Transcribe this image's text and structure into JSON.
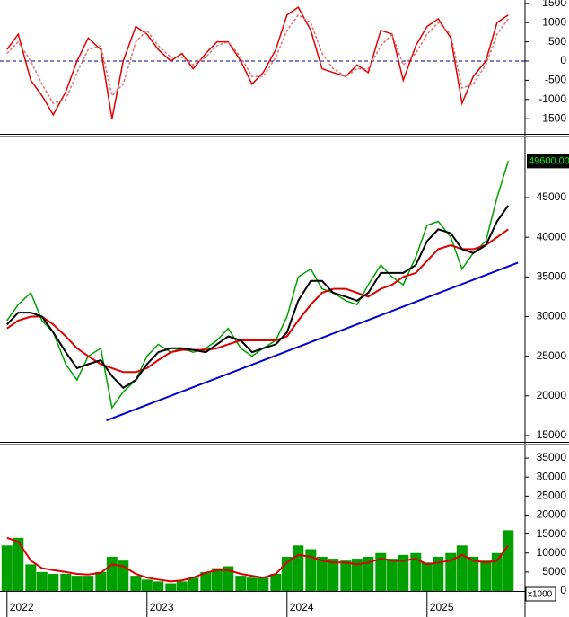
{
  "chart_data": [
    {
      "type": "line",
      "xlim": [
        2021.95,
        2025.7
      ],
      "ylim": [
        -1870,
        1590
      ],
      "yticks": [
        1500,
        1000,
        500,
        0,
        -500,
        -1000,
        -1500
      ],
      "hline": 0,
      "x": [
        2022.0,
        2022.08,
        2022.17,
        2022.25,
        2022.33,
        2022.42,
        2022.5,
        2022.58,
        2022.67,
        2022.75,
        2022.83,
        2022.92,
        2023.0,
        2023.08,
        2023.17,
        2023.25,
        2023.33,
        2023.42,
        2023.5,
        2023.58,
        2023.67,
        2023.75,
        2023.83,
        2023.92,
        2024.0,
        2024.08,
        2024.17,
        2024.25,
        2024.33,
        2024.42,
        2024.5,
        2024.58,
        2024.67,
        2024.75,
        2024.83,
        2024.92,
        2025.0,
        2025.08,
        2025.17,
        2025.25,
        2025.33,
        2025.42,
        2025.5,
        2025.58
      ],
      "series": [
        {
          "color": "#e00000",
          "style": "solid",
          "values": [
            300,
            700,
            -500,
            -900,
            -1400,
            -800,
            0,
            600,
            300,
            -1500,
            0,
            900,
            700,
            300,
            0,
            200,
            -200,
            200,
            500,
            500,
            0,
            -600,
            -300,
            300,
            1200,
            1400,
            800,
            -200,
            -300,
            -400,
            -100,
            -300,
            800,
            700,
            -500,
            400,
            900,
            1100,
            600,
            -1100,
            -400,
            0,
            1000,
            1200
          ]
        },
        {
          "color": "#e07070",
          "style": "dashed",
          "values": [
            200,
            500,
            0,
            -600,
            -1100,
            -1000,
            -300,
            300,
            400,
            -900,
            -600,
            500,
            800,
            400,
            100,
            100,
            -100,
            100,
            400,
            500,
            100,
            -400,
            -400,
            100,
            800,
            1200,
            1000,
            200,
            -200,
            -400,
            -200,
            -200,
            400,
            700,
            -100,
            200,
            700,
            1000,
            700,
            -700,
            -600,
            -100,
            700,
            1100
          ]
        }
      ]
    },
    {
      "type": "line",
      "xlim": [
        2021.95,
        2025.7
      ],
      "ylim": [
        14200,
        52700
      ],
      "yticks": [
        45000,
        40000,
        35000,
        30000,
        25000,
        20000,
        15000
      ],
      "last_price": {
        "value": 49600,
        "label": "49600.00"
      },
      "x": [
        2022.0,
        2022.08,
        2022.17,
        2022.25,
        2022.33,
        2022.42,
        2022.5,
        2022.58,
        2022.67,
        2022.75,
        2022.83,
        2022.92,
        2023.0,
        2023.08,
        2023.17,
        2023.25,
        2023.33,
        2023.42,
        2023.5,
        2023.58,
        2023.67,
        2023.75,
        2023.83,
        2023.92,
        2024.0,
        2024.08,
        2024.17,
        2024.25,
        2024.33,
        2024.42,
        2024.5,
        2024.58,
        2024.67,
        2024.75,
        2024.83,
        2024.92,
        2025.0,
        2025.08,
        2025.17,
        2025.25,
        2025.33,
        2025.42,
        2025.5,
        2025.58
      ],
      "series": [
        {
          "color": "#00a000",
          "width": 1.5,
          "values": [
            29500,
            31500,
            33000,
            29500,
            28000,
            24000,
            22000,
            25000,
            26000,
            18500,
            20500,
            22000,
            25000,
            26500,
            25500,
            26000,
            25500,
            26000,
            27000,
            28500,
            26000,
            25000,
            26000,
            27000,
            30000,
            35000,
            36000,
            33500,
            33000,
            32000,
            31500,
            34000,
            36500,
            35000,
            34000,
            37500,
            41500,
            42000,
            40000,
            36000,
            38000,
            39500,
            45000,
            49600
          ]
        },
        {
          "color": "#dd0000",
          "width": 2,
          "values": [
            28500,
            29500,
            30000,
            30000,
            29000,
            27500,
            26000,
            25000,
            24000,
            23500,
            23000,
            23000,
            23500,
            24500,
            25500,
            25800,
            25800,
            25800,
            26000,
            26500,
            27000,
            27000,
            27000,
            27000,
            27500,
            29500,
            31500,
            33000,
            33500,
            33500,
            33000,
            32500,
            33500,
            34000,
            35000,
            35500,
            37000,
            38500,
            39000,
            38500,
            38500,
            39000,
            40000,
            41000
          ]
        },
        {
          "color": "#000000",
          "width": 2,
          "values": [
            29000,
            30500,
            30500,
            30000,
            28000,
            25500,
            23500,
            24000,
            24500,
            22500,
            21000,
            22000,
            24000,
            25500,
            26000,
            26000,
            25800,
            25500,
            26500,
            27500,
            27000,
            25500,
            26000,
            26500,
            28000,
            32000,
            34500,
            34500,
            33000,
            32500,
            32000,
            33000,
            35500,
            35500,
            35500,
            36500,
            39500,
            41000,
            40500,
            38500,
            38000,
            39000,
            42000,
            44000
          ]
        }
      ],
      "trendline": {
        "color": "#0000cc",
        "x": [
          2022.71,
          2025.65
        ],
        "values": [
          16900,
          36800
        ]
      }
    },
    {
      "type": "bar",
      "xlim": [
        2021.95,
        2025.7
      ],
      "ylim": [
        0,
        38800
      ],
      "yticks": [
        35000,
        30000,
        25000,
        20000,
        15000,
        10000,
        5000,
        0
      ],
      "y_unit_label": "x1000",
      "xticks": [
        2022,
        2023,
        2024,
        2025
      ],
      "x": [
        2022.0,
        2022.08,
        2022.17,
        2022.25,
        2022.33,
        2022.42,
        2022.5,
        2022.58,
        2022.67,
        2022.75,
        2022.83,
        2022.92,
        2023.0,
        2023.08,
        2023.17,
        2023.25,
        2023.33,
        2023.42,
        2023.5,
        2023.58,
        2023.67,
        2023.75,
        2023.83,
        2023.92,
        2024.0,
        2024.08,
        2024.17,
        2024.25,
        2024.33,
        2024.42,
        2024.5,
        2024.58,
        2024.67,
        2024.75,
        2024.83,
        2024.92,
        2025.0,
        2025.08,
        2025.17,
        2025.25,
        2025.33,
        2025.42,
        2025.5,
        2025.58
      ],
      "series": [
        {
          "color": "#00a000",
          "kind": "bar",
          "values": [
            12000,
            14000,
            7000,
            5000,
            4500,
            4500,
            4000,
            4000,
            5000,
            9000,
            8000,
            4000,
            3000,
            2500,
            2000,
            2500,
            3500,
            5000,
            6000,
            6500,
            4000,
            3500,
            3500,
            4500,
            9000,
            12000,
            11000,
            9000,
            8500,
            8000,
            8500,
            9000,
            10000,
            8500,
            9500,
            10000,
            7500,
            9000,
            10000,
            12000,
            9000,
            8000,
            10000,
            16000
          ]
        },
        {
          "color": "#dd0000",
          "kind": "line",
          "width": 2,
          "values": [
            14000,
            13000,
            8000,
            6000,
            5500,
            5000,
            4500,
            4300,
            4800,
            7000,
            6500,
            4500,
            3500,
            3000,
            2500,
            2800,
            3500,
            4800,
            5500,
            5500,
            4500,
            4000,
            3500,
            4500,
            7500,
            9500,
            9000,
            8000,
            7500,
            7500,
            7000,
            7500,
            8500,
            8000,
            8000,
            8500,
            7000,
            7500,
            8000,
            9500,
            8000,
            7500,
            8000,
            12000
          ]
        }
      ]
    }
  ]
}
